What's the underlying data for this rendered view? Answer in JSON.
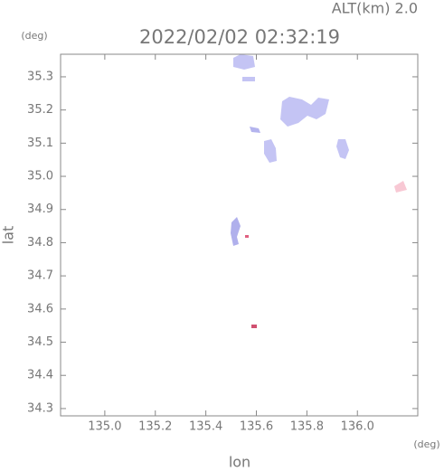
{
  "chart_data": {
    "type": "map",
    "title": "2022/02/02 02:32:19",
    "subtitle": "ALT(km) 2.0",
    "x_label": "lon",
    "y_label": "lat",
    "x_unit": "(deg)",
    "y_unit": "(deg)",
    "xlim": [
      134.825,
      136.239
    ],
    "ylim": [
      34.278,
      35.368
    ],
    "xticks": [
      {
        "value": 135,
        "label": "135.0"
      },
      135.2,
      135.4,
      135.6,
      135.8,
      {
        "value": 136,
        "label": "136.0"
      }
    ],
    "yticks": [
      34.3,
      34.4,
      34.5,
      34.6,
      34.7,
      34.8,
      34.9,
      {
        "value": 35,
        "label": "35.0"
      },
      35.1,
      35.2,
      35.3
    ]
  }
}
